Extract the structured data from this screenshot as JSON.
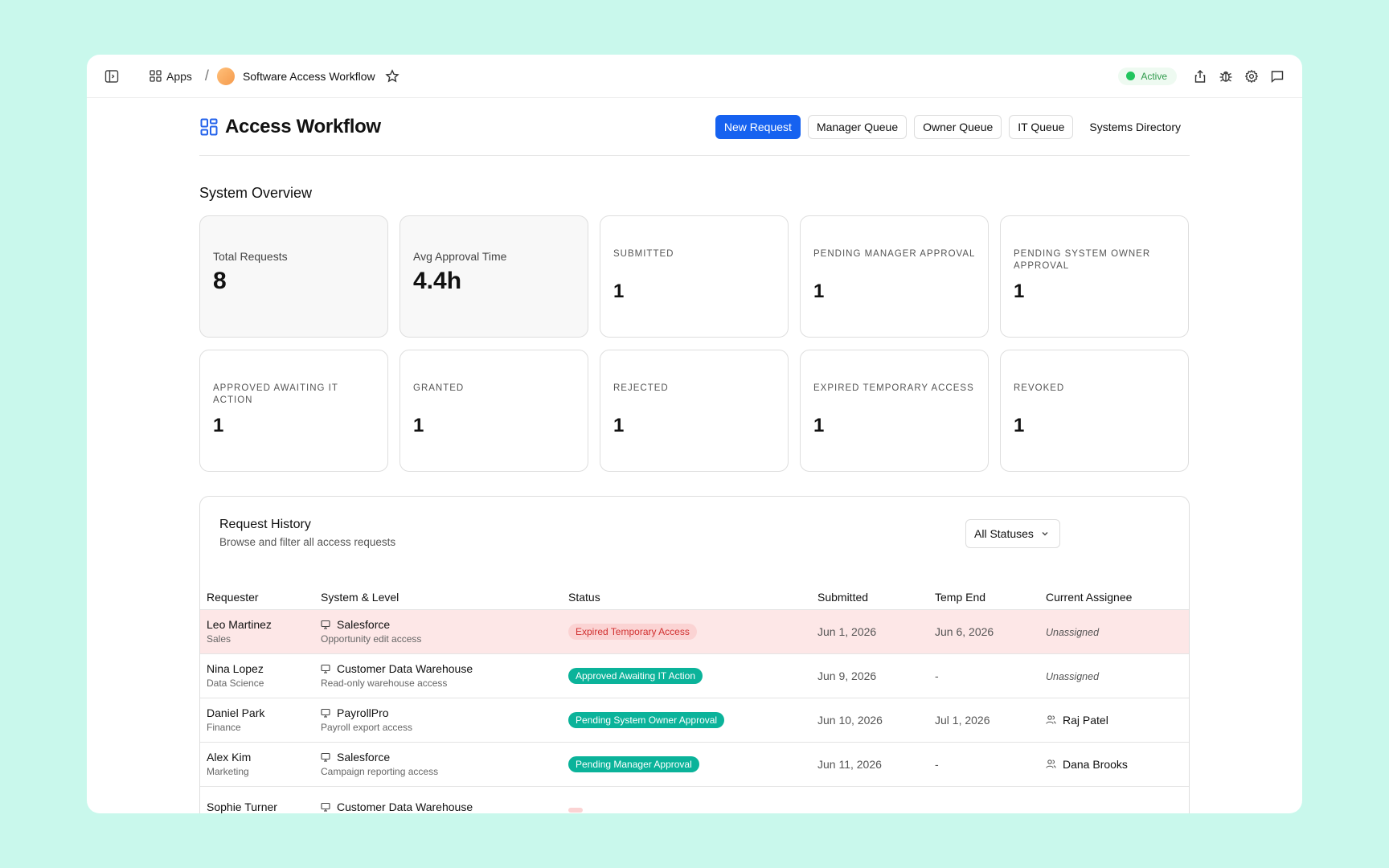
{
  "topbar": {
    "apps_label": "Apps",
    "app_title": "Software Access Workflow",
    "status_label": "Active"
  },
  "header": {
    "title": "Access Workflow",
    "nav": [
      "New Request",
      "Manager Queue",
      "Owner Queue",
      "IT Queue",
      "Systems Directory"
    ]
  },
  "overview": {
    "title": "System Overview",
    "cards": [
      {
        "label": "Total Requests",
        "value": "8"
      },
      {
        "label": "Avg Approval Time",
        "value": "4.4h"
      },
      {
        "label": "SUBMITTED",
        "value": "1"
      },
      {
        "label": "PENDING MANAGER APPROVAL",
        "value": "1"
      },
      {
        "label": "PENDING SYSTEM OWNER APPROVAL",
        "value": "1"
      },
      {
        "label": "APPROVED AWAITING IT ACTION",
        "value": "1"
      },
      {
        "label": "GRANTED",
        "value": "1"
      },
      {
        "label": "REJECTED",
        "value": "1"
      },
      {
        "label": "EXPIRED TEMPORARY ACCESS",
        "value": "1"
      },
      {
        "label": "REVOKED",
        "value": "1"
      }
    ]
  },
  "history": {
    "title": "Request History",
    "subtitle": "Browse and filter all access requests",
    "filter_value": "All Statuses",
    "columns": [
      "Requester",
      "System & Level",
      "Status",
      "Submitted",
      "Temp End",
      "Current Assignee"
    ],
    "rows": [
      {
        "name": "Leo Martinez",
        "dept": "Sales",
        "system": "Salesforce",
        "level": "Opportunity edit access",
        "status": "Expired Temporary Access",
        "submitted": "Jun 1, 2026",
        "temp_end": "Jun 6, 2026",
        "assignee": "Unassigned"
      },
      {
        "name": "Nina Lopez",
        "dept": "Data Science",
        "system": "Customer Data Warehouse",
        "level": "Read-only warehouse access",
        "status": "Approved Awaiting IT Action",
        "submitted": "Jun 9, 2026",
        "temp_end": "-",
        "assignee": "Unassigned"
      },
      {
        "name": "Daniel Park",
        "dept": "Finance",
        "system": "PayrollPro",
        "level": "Payroll export access",
        "status": "Pending System Owner Approval",
        "submitted": "Jun 10, 2026",
        "temp_end": "Jul 1, 2026",
        "assignee": "Raj Patel"
      },
      {
        "name": "Alex Kim",
        "dept": "Marketing",
        "system": "Salesforce",
        "level": "Campaign reporting access",
        "status": "Pending Manager Approval",
        "submitted": "Jun 11, 2026",
        "temp_end": "-",
        "assignee": "Dana Brooks"
      },
      {
        "name": "Sophie Turner",
        "dept": "",
        "system": "Customer Data Warehouse",
        "level": "",
        "status": "",
        "submitted": "",
        "temp_end": "",
        "assignee": ""
      }
    ]
  }
}
